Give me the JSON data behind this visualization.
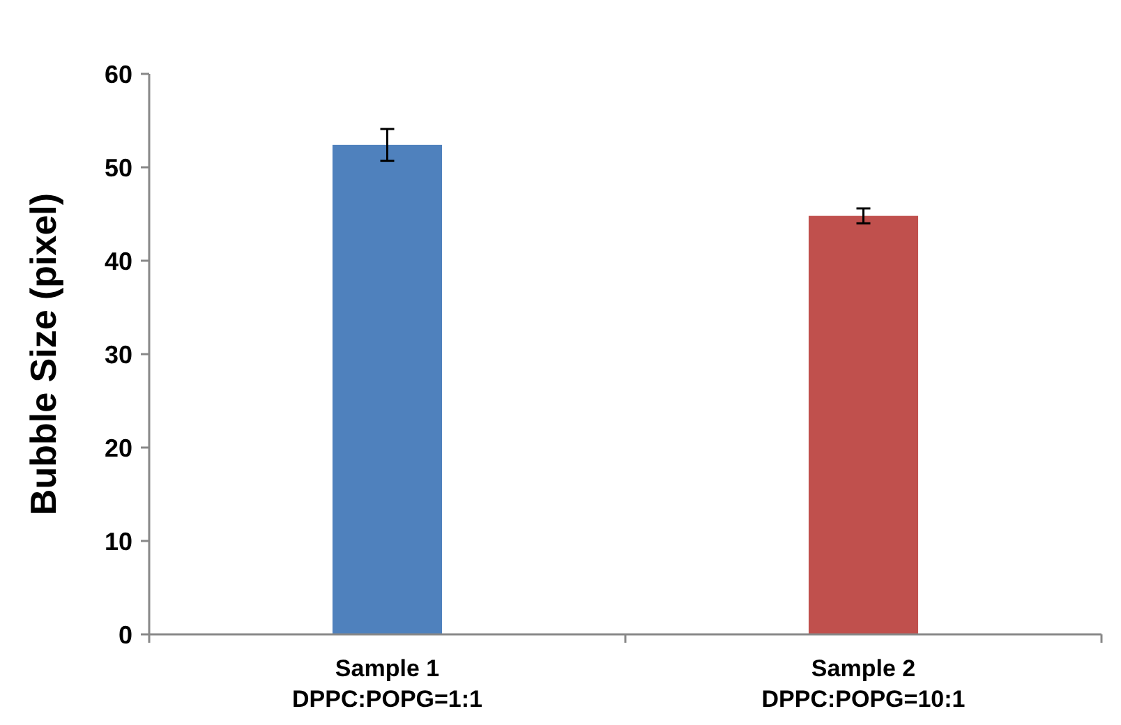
{
  "chart_data": {
    "type": "bar",
    "ylabel": "Bubble Size (pixel)",
    "categories": [
      "Sample 1\nDPPC:POPG=1:1",
      "Sample 2\nDPPC:POPG=10:1"
    ],
    "values": [
      52.4,
      44.8
    ],
    "colors": [
      "#4f81bd",
      "#c0504d"
    ],
    "errors": [
      1.7,
      0.8
    ],
    "ylim": [
      0,
      60
    ],
    "yticks": [
      0,
      10,
      20,
      30,
      40,
      50,
      60
    ],
    "grid": false
  }
}
